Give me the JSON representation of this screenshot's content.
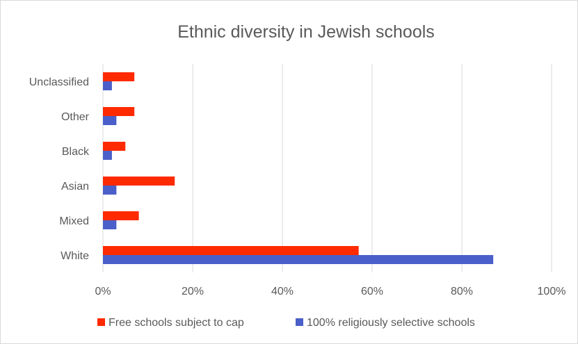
{
  "chart_data": {
    "type": "bar",
    "orientation": "horizontal",
    "title": "Ethnic diversity in Jewish schools",
    "categories": [
      "Unclassified",
      "Other",
      "Black",
      "Asian",
      "Mixed",
      "White"
    ],
    "series": [
      {
        "name": "Free schools subject to cap",
        "color": "#ff2a00",
        "values": [
          0.07,
          0.07,
          0.05,
          0.16,
          0.08,
          0.57
        ]
      },
      {
        "name": "100% religiously selective schools",
        "color": "#4a5fc9",
        "values": [
          0.02,
          0.03,
          0.02,
          0.03,
          0.03,
          0.87
        ]
      }
    ],
    "xlim": [
      0,
      1
    ],
    "x_ticks": [
      0,
      0.2,
      0.4,
      0.6,
      0.8,
      1.0
    ],
    "x_tick_labels": [
      "0%",
      "20%",
      "40%",
      "60%",
      "80%",
      "100%"
    ],
    "grid": true,
    "legend_position": "bottom"
  }
}
